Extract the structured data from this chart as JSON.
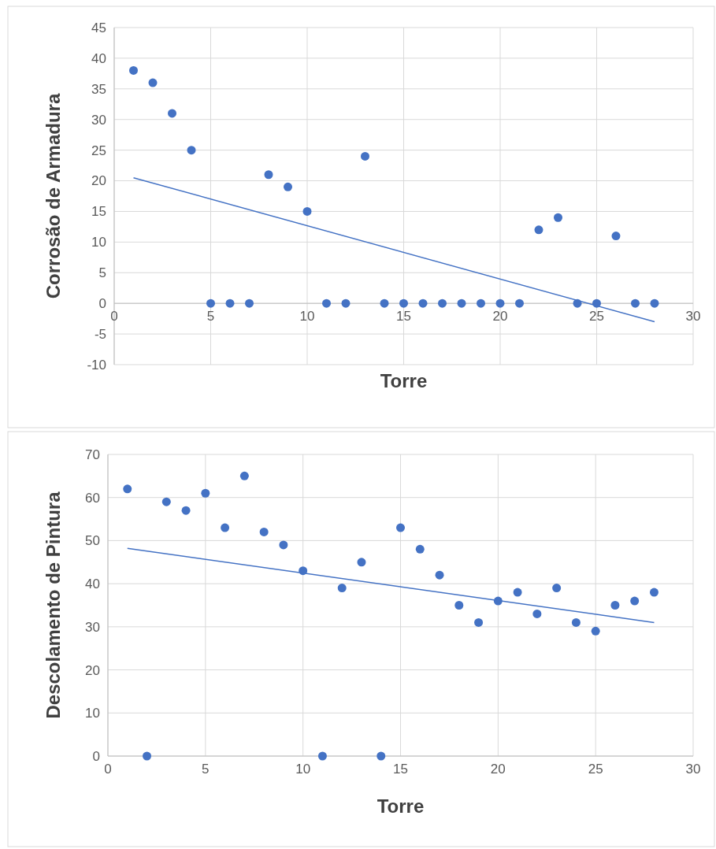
{
  "chart_data": [
    {
      "type": "scatter",
      "xlabel": "Torre",
      "ylabel": "Corrosão de Armadura",
      "xlim": [
        0,
        30
      ],
      "xticks": [
        0,
        5,
        10,
        15,
        20,
        25,
        30
      ],
      "ylim": [
        -10,
        45
      ],
      "yticks": [
        -10,
        -5,
        0,
        5,
        10,
        15,
        20,
        25,
        30,
        35,
        40,
        45
      ],
      "grid": true,
      "series": [
        {
          "marker": "circle",
          "color": "#4472c4",
          "x": [
            1,
            2,
            3,
            4,
            5,
            6,
            7,
            8,
            9,
            10,
            11,
            12,
            13,
            14,
            15,
            16,
            17,
            18,
            19,
            20,
            21,
            22,
            23,
            24,
            25,
            26,
            27,
            28
          ],
          "values": [
            38,
            36,
            31,
            25,
            0,
            0,
            0,
            21,
            19,
            15,
            0,
            0,
            24,
            0,
            0,
            0,
            0,
            0,
            0,
            0,
            0,
            12,
            14,
            0,
            0,
            11,
            0,
            0
          ]
        },
        {
          "type": "line",
          "color": "#4472c4",
          "x": [
            1,
            28
          ],
          "values": [
            20.5,
            -3
          ]
        }
      ]
    },
    {
      "type": "scatter",
      "xlabel": "Torre",
      "ylabel": "Descolamento de Pintura",
      "xlim": [
        0,
        30
      ],
      "xticks": [
        0,
        5,
        10,
        15,
        20,
        25,
        30
      ],
      "ylim": [
        0,
        70
      ],
      "yticks": [
        0,
        10,
        20,
        30,
        40,
        50,
        60,
        70
      ],
      "grid": true,
      "series": [
        {
          "marker": "circle",
          "color": "#4472c4",
          "x": [
            1,
            2,
            3,
            4,
            5,
            6,
            7,
            8,
            9,
            10,
            11,
            12,
            13,
            14,
            15,
            16,
            17,
            18,
            19,
            20,
            21,
            22,
            23,
            24,
            25,
            26,
            27,
            28
          ],
          "values": [
            62,
            0,
            59,
            57,
            61,
            53,
            65,
            52,
            49,
            43,
            0,
            39,
            45,
            0,
            53,
            48,
            42,
            35,
            31,
            36,
            38,
            33,
            39,
            31,
            29,
            35,
            36,
            38
          ]
        },
        {
          "type": "line",
          "color": "#4472c4",
          "x": [
            1,
            28
          ],
          "values": [
            48.2,
            31
          ]
        }
      ]
    }
  ]
}
